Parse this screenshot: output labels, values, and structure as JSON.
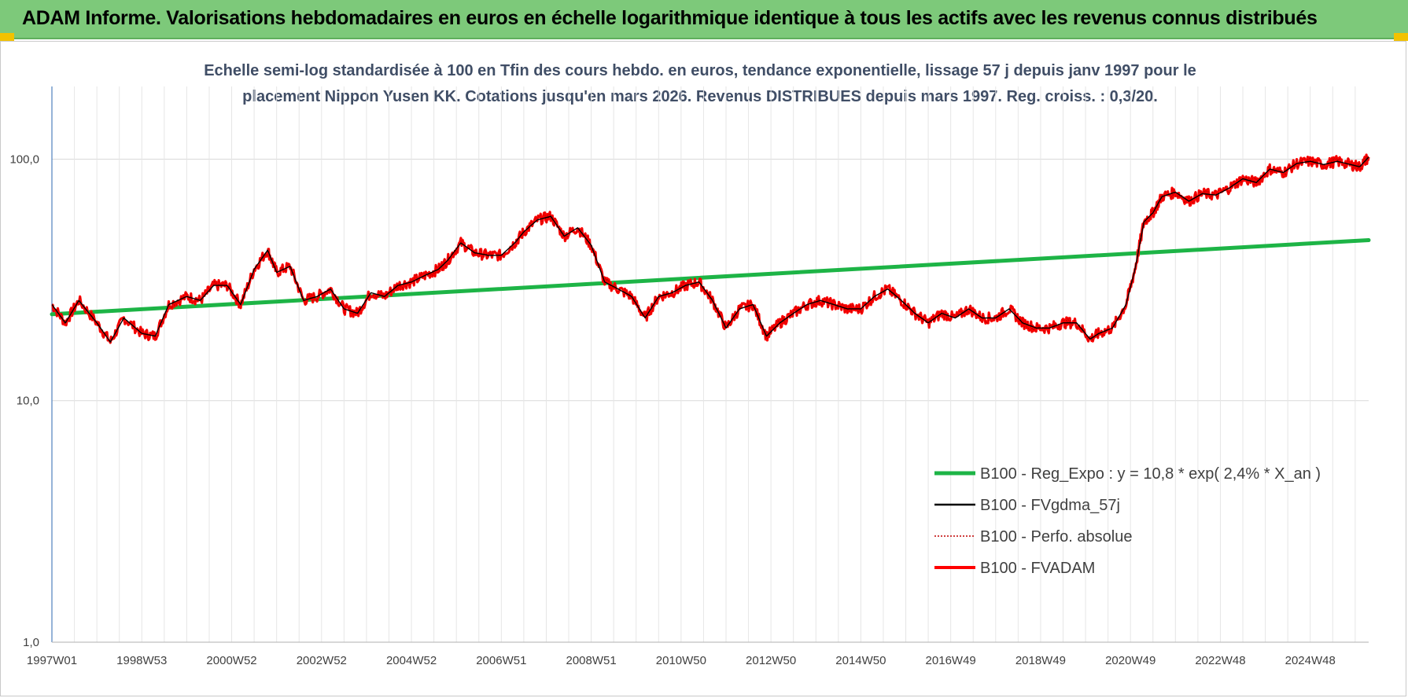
{
  "header": {
    "title": "ADAM Informe. Valorisations hebdomadaires en euros en échelle logarithmique identique à tous les actifs avec les revenus connus distribués"
  },
  "chart_data": {
    "type": "line",
    "title_line1": "Echelle semi-log standardisée à 100 en Tfin des cours hebdo. en euros, tendance exponentielle, lissage 57 j depuis janv 1997 pour le",
    "title_line2": "placement Nippon Yusen KK. Cotations jusqu'en mars 2026. Revenus DISTRIBUES depuis mars 1997. Reg. croiss. : 0,3/20.",
    "yscale": "log",
    "ylim": [
      1,
      200
    ],
    "xlim": [
      1997.0,
      2026.3
    ],
    "y_ticks": [
      {
        "value": 1,
        "label": "1,0"
      },
      {
        "value": 10,
        "label": "10,0"
      },
      {
        "value": 100,
        "label": "100,0"
      }
    ],
    "x_ticks": [
      {
        "value": 1997.0,
        "label": "1997W01"
      },
      {
        "value": 1999.0,
        "label": "1998W53"
      },
      {
        "value": 2001.0,
        "label": "2000W52"
      },
      {
        "value": 2003.0,
        "label": "2002W52"
      },
      {
        "value": 2005.0,
        "label": "2004W52"
      },
      {
        "value": 2007.0,
        "label": "2006W51"
      },
      {
        "value": 2009.0,
        "label": "2008W51"
      },
      {
        "value": 2011.0,
        "label": "2010W50"
      },
      {
        "value": 2013.0,
        "label": "2012W50"
      },
      {
        "value": 2015.0,
        "label": "2014W50"
      },
      {
        "value": 2017.0,
        "label": "2016W49"
      },
      {
        "value": 2019.0,
        "label": "2018W49"
      },
      {
        "value": 2021.0,
        "label": "2020W49"
      },
      {
        "value": 2023.0,
        "label": "2022W48"
      },
      {
        "value": 2025.0,
        "label": "2024W48"
      }
    ],
    "grid": "horizontal and vertical",
    "legend_position": "lower-right",
    "series": [
      {
        "name": "B100 - Reg_Expo : y = 10,8 * exp( 2,4% *  X_an )",
        "color": "#1db446",
        "style": "solid-thick",
        "type": "exponential",
        "x": [
          1997.0,
          2026.3
        ],
        "y": [
          22.8,
          46.2
        ]
      },
      {
        "name": "B100 - FVgdma_57j",
        "color": "#000000",
        "style": "solid-thin",
        "x": [],
        "y": []
      },
      {
        "name": "B100 - Perfo. absolue",
        "color": "#c00000",
        "style": "dotted",
        "x": [],
        "y": []
      },
      {
        "name": "B100 - FVADAM",
        "color": "#ff0000",
        "style": "solid-thick",
        "x": [
          1997.0,
          1997.3,
          1997.6,
          1998.0,
          1998.3,
          1998.6,
          1999.0,
          1999.3,
          1999.6,
          2000.0,
          2000.3,
          2000.6,
          2000.9,
          2001.2,
          2001.5,
          2001.8,
          2002.0,
          2002.3,
          2002.6,
          2002.9,
          2003.2,
          2003.5,
          2003.8,
          2004.1,
          2004.4,
          2004.7,
          2005.0,
          2005.3,
          2005.6,
          2005.8,
          2006.1,
          2006.4,
          2006.7,
          2007.0,
          2007.3,
          2007.5,
          2007.8,
          2008.1,
          2008.4,
          2008.7,
          2009.0,
          2009.3,
          2009.6,
          2009.9,
          2010.2,
          2010.5,
          2010.8,
          2011.1,
          2011.4,
          2011.7,
          2012.0,
          2012.3,
          2012.6,
          2012.9,
          2013.2,
          2013.5,
          2013.8,
          2014.1,
          2014.4,
          2014.7,
          2015.0,
          2015.3,
          2015.6,
          2015.9,
          2016.2,
          2016.5,
          2016.8,
          2017.1,
          2017.4,
          2017.7,
          2018.0,
          2018.3,
          2018.6,
          2018.9,
          2019.2,
          2019.5,
          2019.8,
          2020.1,
          2020.3,
          2020.6,
          2020.9,
          2021.1,
          2021.3,
          2021.5,
          2021.7,
          2022.0,
          2022.3,
          2022.6,
          2022.9,
          2023.2,
          2023.5,
          2023.8,
          2024.1,
          2024.4,
          2024.7,
          2025.0,
          2025.3,
          2025.6,
          2025.9,
          2026.1,
          2026.3
        ],
        "y": [
          25.0,
          21.0,
          26.0,
          21.0,
          17.5,
          22.0,
          19.0,
          18.5,
          25.0,
          27.0,
          26.0,
          30.0,
          30.0,
          25.0,
          35.0,
          42.0,
          34.0,
          36.0,
          26.0,
          27.0,
          29.0,
          24.0,
          23.0,
          28.0,
          27.0,
          30.0,
          31.0,
          33.0,
          35.0,
          38.0,
          45.0,
          41.0,
          40.0,
          40.0,
          45.0,
          50.0,
          56.0,
          58.0,
          48.0,
          52.0,
          44.0,
          31.0,
          29.0,
          27.0,
          22.0,
          27.0,
          28.0,
          30.0,
          31.0,
          26.0,
          20.0,
          24.0,
          25.0,
          18.5,
          21.0,
          23.0,
          25.0,
          26.0,
          25.0,
          24.0,
          24.0,
          27.0,
          29.0,
          26.0,
          23.0,
          21.0,
          23.0,
          22.0,
          24.0,
          22.0,
          22.0,
          24.0,
          21.0,
          20.0,
          20.0,
          21.0,
          21.0,
          18.0,
          19.0,
          20.0,
          25.0,
          35.0,
          55.0,
          60.0,
          70.0,
          73.0,
          67.0,
          72.0,
          71.0,
          76.0,
          83.0,
          80.0,
          91.0,
          88.0,
          96.0,
          98.0,
          95.0,
          98.0,
          95.0,
          93.0,
          102.0
        ]
      }
    ]
  }
}
